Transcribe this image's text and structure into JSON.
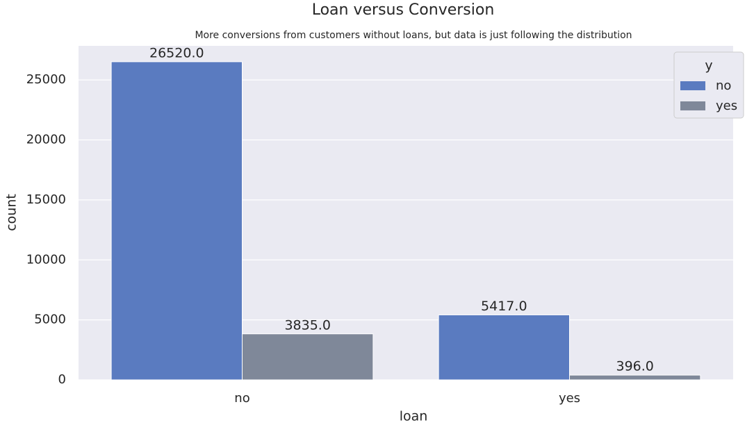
{
  "chart_data": {
    "type": "bar",
    "title": "Loan versus Conversion",
    "subtitle": "More conversions from customers without loans, but data is just following the distribution",
    "x_label": "loan",
    "y_label": "count",
    "categories": [
      "no",
      "yes"
    ],
    "legend_title": "y",
    "legend_position": "upper right",
    "series": [
      {
        "name": "no",
        "color": "#5a7bc0",
        "values": [
          26520,
          5417
        ],
        "value_labels": [
          "26520.0",
          "5417.0"
        ]
      },
      {
        "name": "yes",
        "color": "#7f8899",
        "values": [
          3835,
          396
        ],
        "value_labels": [
          "3835.0",
          "396.0"
        ]
      }
    ],
    "annotations": [
      "0"
    ],
    "ylim": [
      0,
      27846
    ],
    "yticks": [
      0,
      5000,
      10000,
      15000,
      20000,
      25000
    ],
    "grid": true
  }
}
